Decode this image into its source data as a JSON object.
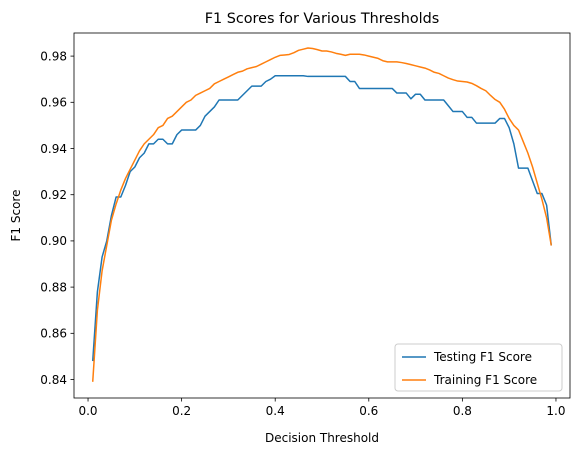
{
  "chart_data": {
    "type": "line",
    "title": "F1 Scores for Various Thresholds",
    "xlabel": "Decision Threshold",
    "ylabel": "F1 Score",
    "xlim": [
      -0.03,
      1.03
    ],
    "ylim": [
      0.832,
      0.99
    ],
    "xticks": [
      0.0,
      0.2,
      0.4,
      0.6,
      0.8,
      1.0
    ],
    "xtick_labels": [
      "0.0",
      "0.2",
      "0.4",
      "0.6",
      "0.8",
      "1.0"
    ],
    "yticks": [
      0.84,
      0.86,
      0.88,
      0.9,
      0.92,
      0.94,
      0.96,
      0.98
    ],
    "ytick_labels": [
      "0.84",
      "0.86",
      "0.88",
      "0.90",
      "0.92",
      "0.94",
      "0.96",
      "0.98"
    ],
    "grid": false,
    "legend_position": "lower-right",
    "series": [
      {
        "name": "Testing F1 Score",
        "color": "#1f77b4",
        "x": [
          0.01,
          0.02,
          0.03,
          0.04,
          0.05,
          0.06,
          0.07,
          0.08,
          0.09,
          0.1,
          0.11,
          0.12,
          0.13,
          0.14,
          0.15,
          0.16,
          0.17,
          0.18,
          0.19,
          0.2,
          0.21,
          0.22,
          0.23,
          0.24,
          0.25,
          0.26,
          0.27,
          0.28,
          0.29,
          0.3,
          0.31,
          0.32,
          0.33,
          0.34,
          0.35,
          0.36,
          0.37,
          0.38,
          0.39,
          0.4,
          0.41,
          0.42,
          0.43,
          0.44,
          0.45,
          0.46,
          0.47,
          0.48,
          0.49,
          0.5,
          0.51,
          0.52,
          0.53,
          0.54,
          0.55,
          0.56,
          0.57,
          0.58,
          0.59,
          0.6,
          0.61,
          0.62,
          0.63,
          0.64,
          0.65,
          0.66,
          0.67,
          0.68,
          0.69,
          0.7,
          0.71,
          0.72,
          0.73,
          0.74,
          0.75,
          0.76,
          0.77,
          0.78,
          0.79,
          0.8,
          0.81,
          0.82,
          0.83,
          0.84,
          0.85,
          0.86,
          0.87,
          0.88,
          0.89,
          0.9,
          0.91,
          0.92,
          0.93,
          0.94,
          0.95,
          0.96,
          0.97,
          0.98,
          0.99
        ],
        "values": [
          0.848,
          0.878,
          0.893,
          0.9,
          0.911,
          0.919,
          0.919,
          0.924,
          0.93,
          0.932,
          0.936,
          0.938,
          0.942,
          0.942,
          0.944,
          0.944,
          0.942,
          0.942,
          0.946,
          0.948,
          0.948,
          0.948,
          0.948,
          0.95,
          0.954,
          0.956,
          0.958,
          0.961,
          0.961,
          0.961,
          0.961,
          0.961,
          0.963,
          0.965,
          0.967,
          0.967,
          0.967,
          0.969,
          0.97,
          0.9715,
          0.9715,
          0.9715,
          0.9715,
          0.9715,
          0.9715,
          0.9715,
          0.9712,
          0.9712,
          0.9712,
          0.9712,
          0.9712,
          0.9712,
          0.9712,
          0.9712,
          0.9712,
          0.969,
          0.969,
          0.966,
          0.966,
          0.966,
          0.966,
          0.966,
          0.966,
          0.966,
          0.966,
          0.964,
          0.964,
          0.964,
          0.9615,
          0.9635,
          0.9635,
          0.961,
          0.961,
          0.961,
          0.961,
          0.961,
          0.9585,
          0.956,
          0.956,
          0.956,
          0.9535,
          0.9535,
          0.951,
          0.951,
          0.951,
          0.951,
          0.951,
          0.953,
          0.953,
          0.949,
          0.942,
          0.9315,
          0.9315,
          0.9315,
          0.926,
          0.9205,
          0.9205,
          0.9155,
          0.898
        ]
      },
      {
        "name": "Training F1 Score",
        "color": "#ff7f0e",
        "x": [
          0.01,
          0.02,
          0.03,
          0.04,
          0.05,
          0.06,
          0.07,
          0.08,
          0.09,
          0.1,
          0.11,
          0.12,
          0.13,
          0.14,
          0.15,
          0.16,
          0.17,
          0.18,
          0.19,
          0.2,
          0.21,
          0.22,
          0.23,
          0.24,
          0.25,
          0.26,
          0.27,
          0.28,
          0.29,
          0.3,
          0.31,
          0.32,
          0.33,
          0.34,
          0.35,
          0.36,
          0.37,
          0.38,
          0.39,
          0.4,
          0.41,
          0.42,
          0.43,
          0.44,
          0.45,
          0.46,
          0.47,
          0.48,
          0.49,
          0.5,
          0.51,
          0.52,
          0.53,
          0.54,
          0.55,
          0.56,
          0.57,
          0.58,
          0.59,
          0.6,
          0.61,
          0.62,
          0.63,
          0.64,
          0.65,
          0.66,
          0.67,
          0.68,
          0.69,
          0.7,
          0.71,
          0.72,
          0.73,
          0.74,
          0.75,
          0.76,
          0.77,
          0.78,
          0.79,
          0.8,
          0.81,
          0.82,
          0.83,
          0.84,
          0.85,
          0.86,
          0.87,
          0.88,
          0.89,
          0.9,
          0.91,
          0.92,
          0.93,
          0.94,
          0.95,
          0.96,
          0.97,
          0.98,
          0.99
        ],
        "values": [
          0.839,
          0.87,
          0.887,
          0.898,
          0.909,
          0.916,
          0.922,
          0.927,
          0.931,
          0.935,
          0.939,
          0.942,
          0.944,
          0.946,
          0.949,
          0.95,
          0.953,
          0.954,
          0.956,
          0.958,
          0.96,
          0.961,
          0.963,
          0.964,
          0.965,
          0.966,
          0.968,
          0.969,
          0.97,
          0.971,
          0.972,
          0.973,
          0.9735,
          0.9745,
          0.975,
          0.9755,
          0.9765,
          0.9775,
          0.9785,
          0.9795,
          0.9803,
          0.9805,
          0.9807,
          0.9815,
          0.9825,
          0.983,
          0.9835,
          0.9833,
          0.9828,
          0.9822,
          0.9822,
          0.9818,
          0.9812,
          0.9808,
          0.9803,
          0.9808,
          0.9808,
          0.9808,
          0.9805,
          0.98,
          0.9795,
          0.979,
          0.978,
          0.9775,
          0.9775,
          0.9775,
          0.9772,
          0.9768,
          0.9763,
          0.9758,
          0.9753,
          0.9748,
          0.974,
          0.973,
          0.9725,
          0.9715,
          0.9705,
          0.9698,
          0.9692,
          0.969,
          0.9688,
          0.9682,
          0.9672,
          0.966,
          0.965,
          0.963,
          0.9612,
          0.96,
          0.957,
          0.953,
          0.95,
          0.948,
          0.943,
          0.938,
          0.932,
          0.925,
          0.918,
          0.91,
          0.898
        ]
      }
    ]
  }
}
